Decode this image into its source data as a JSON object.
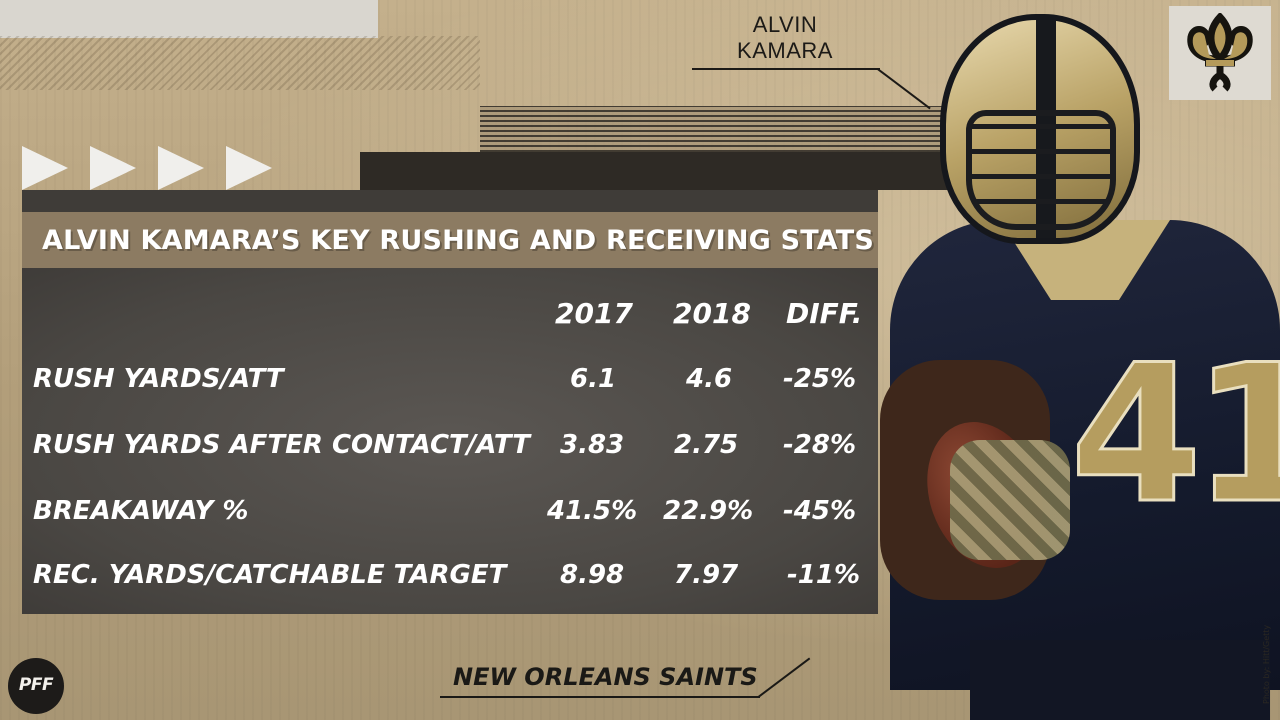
{
  "player_callout": {
    "line1": "ALVIN",
    "line2": "KAMARA"
  },
  "table": {
    "title": "ALVIN KAMARA’S KEY RUSHING AND RECEIVING STATS",
    "columns": [
      "2017",
      "2018",
      "DIFF."
    ],
    "rows": [
      {
        "label": "RUSH YARDS/ATT",
        "y2017": "6.1",
        "y2018": "4.6",
        "diff": "-25%"
      },
      {
        "label": "RUSH YARDS AFTER CONTACT/ATT",
        "y2017": "3.83",
        "y2018": "2.75",
        "diff": "-28%"
      },
      {
        "label": "BREAKAWAY %",
        "y2017": "41.5%",
        "y2018": "22.9%",
        "diff": "-45%"
      },
      {
        "label": "REC. YARDS/CATCHABLE TARGET",
        "y2017": "8.98",
        "y2018": "7.97",
        "diff": "-11%"
      }
    ]
  },
  "footer": {
    "team": "NEW ORLEANS SAINTS"
  },
  "branding": {
    "logo_text": "PFF",
    "team_logo_icon": "fleur-de-lis-icon",
    "photo_credit": "Photo by: Hitt/Getty"
  },
  "player_image": {
    "jersey_number": "41"
  },
  "colors": {
    "background": "#b6a27f",
    "panel": "#4a4642",
    "title_band": "#8c7b62",
    "text_light": "#ffffff",
    "text_dark": "#1a1916",
    "saints_gold": "#b59d5f",
    "saints_navy": "#141a2c"
  }
}
